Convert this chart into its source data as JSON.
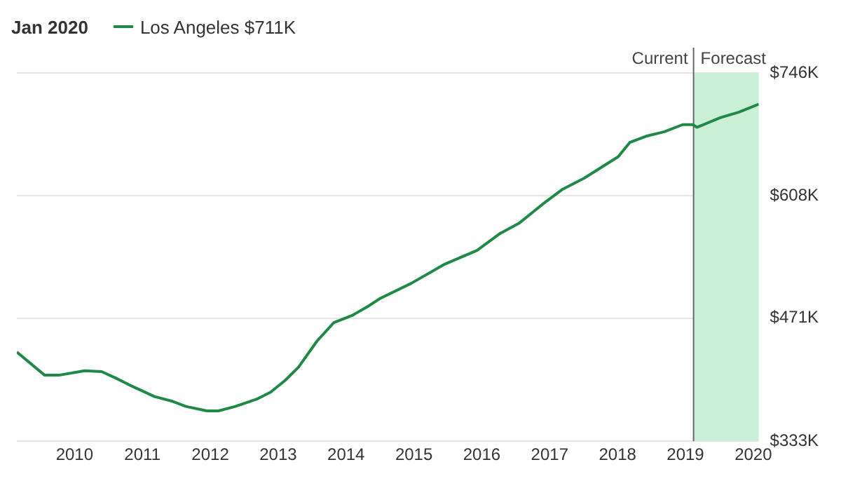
{
  "chart_data": {
    "type": "line",
    "title": "Jan 2020",
    "legend": "top left",
    "grid": "y",
    "marker": "none",
    "line_style": "solid",
    "xlim": [
      2009.15,
      2020.08
    ],
    "xticks": [
      2010,
      2011,
      2012,
      2013,
      2014,
      2015,
      2016,
      2017,
      2018,
      2019,
      2020
    ],
    "ylim": [
      333,
      746
    ],
    "yticks": [
      {
        "value": 333,
        "label": "$333K"
      },
      {
        "value": 471,
        "label": "$471K"
      },
      {
        "value": 608,
        "label": "$608K"
      },
      {
        "value": 746,
        "label": "$746K"
      }
    ],
    "series": [
      {
        "name": "Los Angeles $711K",
        "color": "#1f8a45",
        "x": [
          2009.15,
          2009.56,
          2009.77,
          2010.15,
          2010.4,
          2010.6,
          2010.81,
          2011.18,
          2011.43,
          2011.64,
          2011.95,
          2012.12,
          2012.37,
          2012.68,
          2012.89,
          2013.1,
          2013.3,
          2013.57,
          2013.82,
          2014.09,
          2014.34,
          2014.5,
          2014.96,
          2015.44,
          2015.93,
          2016.27,
          2016.56,
          2016.9,
          2017.18,
          2017.51,
          2018.01,
          2018.18,
          2018.42,
          2018.69,
          2018.96,
          2019.11,
          2019.17,
          2019.52,
          2019.79,
          2020.08
        ],
        "values": [
          433,
          407,
          407,
          412,
          411,
          404,
          396,
          383,
          378,
          372,
          367,
          367,
          372,
          380,
          388,
          401,
          416,
          445,
          466,
          474,
          485,
          493,
          510,
          531,
          547,
          566,
          578,
          599,
          615,
          628,
          652,
          668,
          675,
          680,
          688,
          688,
          685,
          696,
          702,
          711
        ]
      }
    ],
    "ref_lines": [
      {
        "axis": "x",
        "value": 2019.12,
        "label": "Current",
        "color": "#666666"
      }
    ],
    "bands": [
      {
        "axis": "x",
        "from": 2019.12,
        "to": 2020.08,
        "label": "Forecast",
        "color": "#c9f0d6"
      }
    ]
  }
}
